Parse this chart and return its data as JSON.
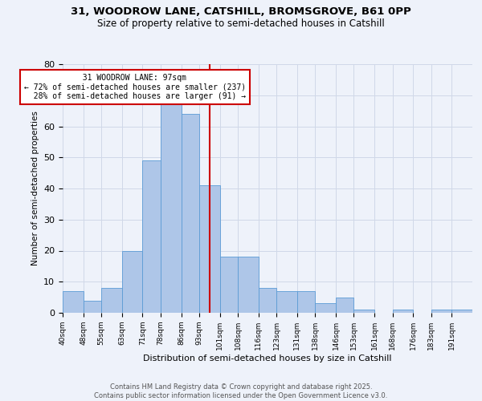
{
  "title_line1": "31, WOODROW LANE, CATSHILL, BROMSGROVE, B61 0PP",
  "title_line2": "Size of property relative to semi-detached houses in Catshill",
  "xlabel": "Distribution of semi-detached houses by size in Catshill",
  "ylabel": "Number of semi-detached properties",
  "bins": [
    40,
    48,
    55,
    63,
    71,
    78,
    86,
    93,
    101,
    108,
    116,
    123,
    131,
    138,
    146,
    153,
    161,
    168,
    176,
    183,
    191
  ],
  "counts": [
    7,
    4,
    8,
    20,
    49,
    67,
    64,
    41,
    18,
    18,
    8,
    7,
    7,
    3,
    5,
    1,
    0,
    1,
    0,
    1,
    1
  ],
  "bar_color": "#aec6e8",
  "bar_edge_color": "#5b9bd5",
  "property_value": 97,
  "property_label": "31 WOODROW LANE: 97sqm",
  "pct_smaller": 72,
  "n_smaller": 237,
  "pct_larger": 28,
  "n_larger": 91,
  "vline_color": "#cc0000",
  "annotation_box_color": "#cc0000",
  "ylim": [
    0,
    80
  ],
  "yticks": [
    0,
    10,
    20,
    30,
    40,
    50,
    60,
    70,
    80
  ],
  "grid_color": "#d0d8e8",
  "bg_color": "#eef2fa",
  "footer_line1": "Contains HM Land Registry data © Crown copyright and database right 2025.",
  "footer_line2": "Contains public sector information licensed under the Open Government Licence v3.0."
}
